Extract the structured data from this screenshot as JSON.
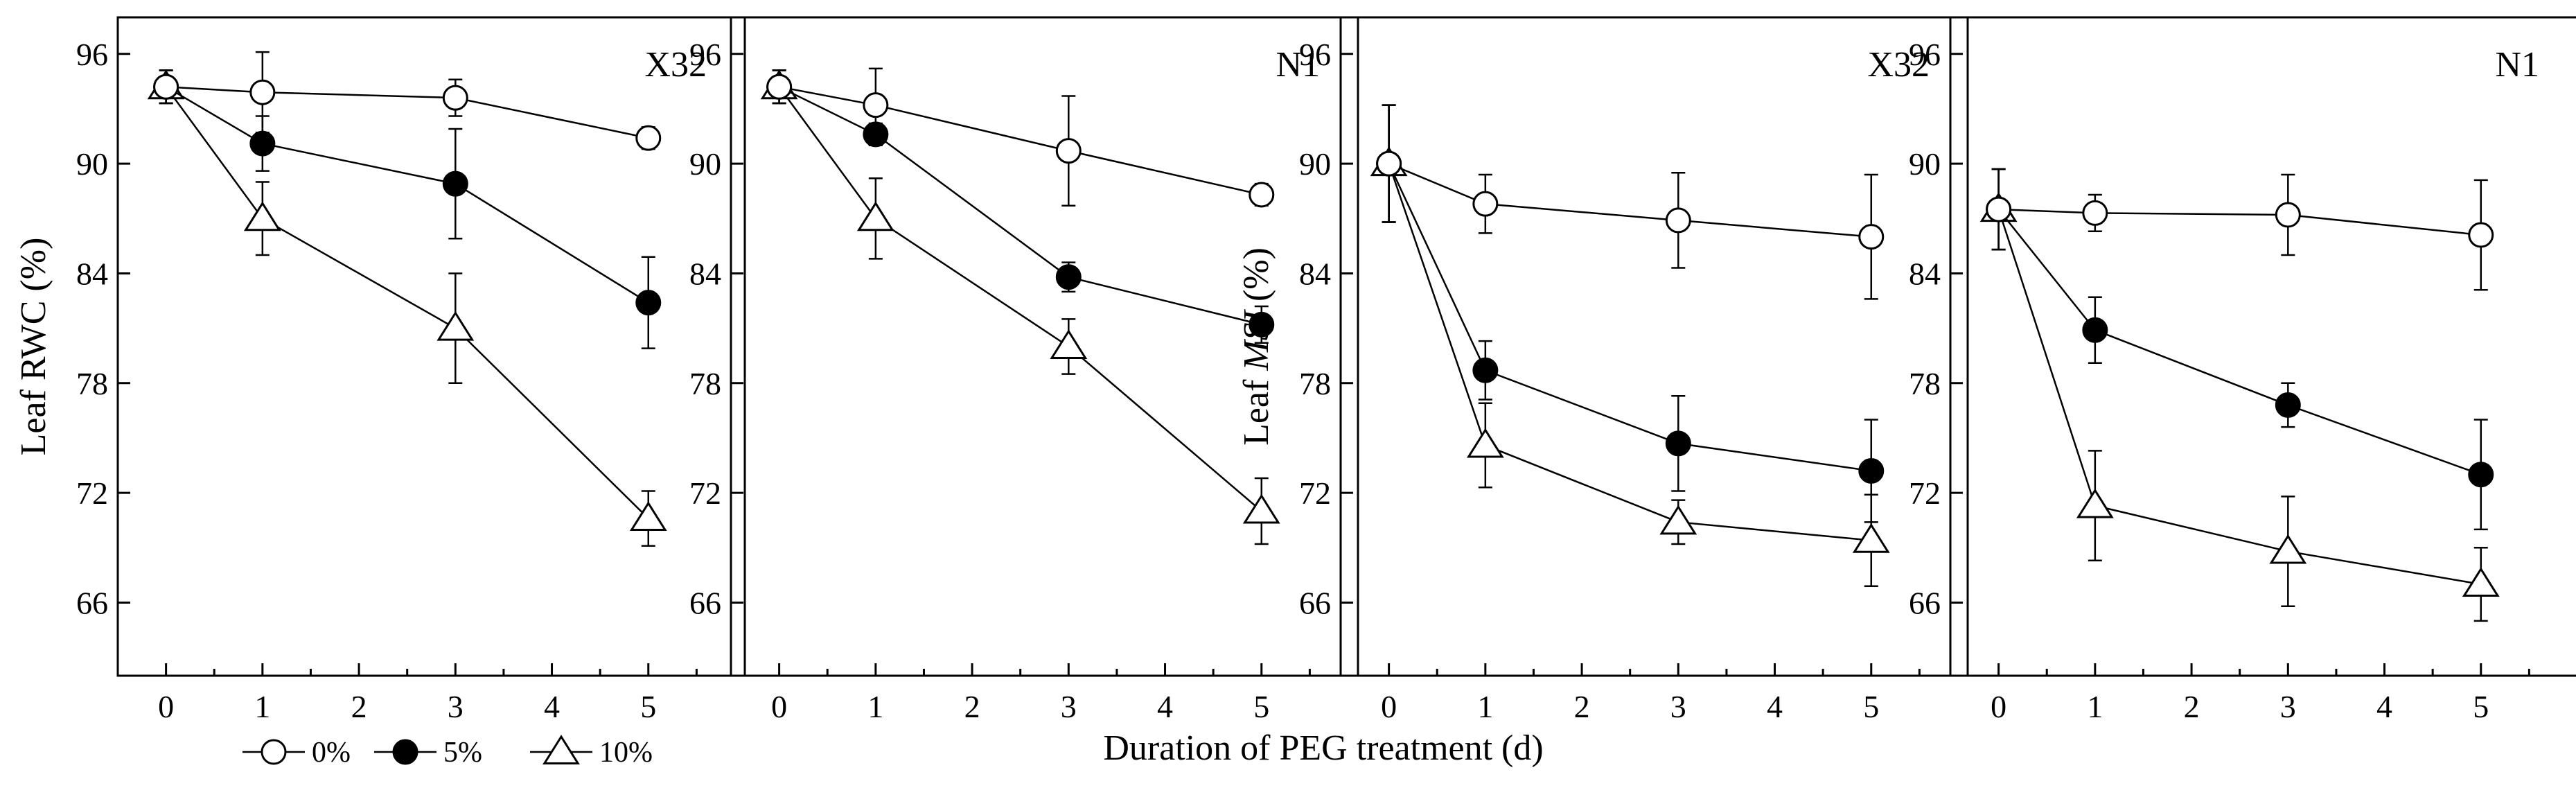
{
  "xlabel": "Duration of PEG treatment (d)",
  "legend": [
    {
      "label": "0%",
      "marker": "open-circle"
    },
    {
      "label": "5%",
      "marker": "filled-circle"
    },
    {
      "label": "10%",
      "marker": "open-triangle"
    }
  ],
  "chart_data": [
    {
      "type": "line",
      "panel_label": "X32",
      "ylabel_prefix": "Leaf ",
      "ylabel_main": "RWC",
      "ylabel_italic": false,
      "ylabel_suffix": " (%)",
      "x": [
        0,
        1,
        3,
        5
      ],
      "xlim": [
        -0.5,
        6
      ],
      "ylim": [
        62,
        98
      ],
      "xticks": [
        0,
        1,
        2,
        3,
        4,
        5
      ],
      "yticks": [
        66,
        72,
        78,
        84,
        90,
        96
      ],
      "series": [
        {
          "name": "0%",
          "marker": "open-circle",
          "values": [
            94.2,
            93.9,
            93.6,
            91.4
          ],
          "errors": [
            0.9,
            2.2,
            1.0,
            0.6
          ]
        },
        {
          "name": "5%",
          "marker": "filled-circle",
          "values": [
            94.2,
            91.1,
            88.9,
            82.4
          ],
          "errors": [
            0.9,
            1.5,
            3.0,
            2.5
          ]
        },
        {
          "name": "10%",
          "marker": "open-triangle",
          "values": [
            94.2,
            87.0,
            81.0,
            70.6
          ],
          "errors": [
            0.9,
            2.0,
            3.0,
            1.5
          ]
        }
      ]
    },
    {
      "type": "line",
      "panel_label": "N1",
      "x": [
        0,
        1,
        3,
        5
      ],
      "xlim": [
        -0.5,
        6
      ],
      "ylim": [
        62,
        98
      ],
      "xticks": [
        0,
        1,
        2,
        3,
        4,
        5
      ],
      "yticks": [
        66,
        72,
        78,
        84,
        90,
        96
      ],
      "series": [
        {
          "name": "0%",
          "marker": "open-circle",
          "values": [
            94.2,
            93.2,
            90.7,
            88.3
          ],
          "errors": [
            0.9,
            2.0,
            3.0,
            0.6
          ]
        },
        {
          "name": "5%",
          "marker": "filled-circle",
          "values": [
            94.2,
            91.6,
            83.8,
            81.2
          ],
          "errors": [
            0.9,
            0.6,
            0.8,
            1.0
          ]
        },
        {
          "name": "10%",
          "marker": "open-triangle",
          "values": [
            94.2,
            87.0,
            80.0,
            71.0
          ],
          "errors": [
            0.9,
            2.2,
            1.5,
            1.8
          ]
        }
      ]
    },
    {
      "type": "line",
      "panel_label": "X32",
      "ylabel_prefix": "Leaf ",
      "ylabel_main": "MSI",
      "ylabel_italic": true,
      "ylabel_suffix": " (%)",
      "x": [
        0,
        1,
        3,
        5
      ],
      "xlim": [
        -0.5,
        6
      ],
      "ylim": [
        62,
        98
      ],
      "xticks": [
        0,
        1,
        2,
        3,
        4,
        5
      ],
      "yticks": [
        66,
        72,
        78,
        84,
        90,
        96
      ],
      "series": [
        {
          "name": "0%",
          "marker": "open-circle",
          "values": [
            90.0,
            87.8,
            86.9,
            86.0
          ],
          "errors": [
            3.2,
            1.6,
            2.6,
            3.4
          ]
        },
        {
          "name": "5%",
          "marker": "filled-circle",
          "values": [
            90.0,
            78.7,
            74.7,
            73.2
          ],
          "errors": [
            3.2,
            1.6,
            2.6,
            2.8
          ]
        },
        {
          "name": "10%",
          "marker": "open-triangle",
          "values": [
            90.0,
            74.6,
            70.4,
            69.4
          ],
          "errors": [
            3.2,
            2.3,
            1.2,
            2.5
          ]
        }
      ]
    },
    {
      "type": "line",
      "panel_label": "N1",
      "x": [
        0,
        1,
        3,
        5
      ],
      "xlim": [
        -0.5,
        6
      ],
      "ylim": [
        62,
        98
      ],
      "xticks": [
        0,
        1,
        2,
        3,
        4,
        5
      ],
      "yticks": [
        66,
        72,
        78,
        84,
        90,
        96
      ],
      "series": [
        {
          "name": "0%",
          "marker": "open-circle",
          "values": [
            87.5,
            87.3,
            87.2,
            86.1
          ],
          "errors": [
            2.2,
            1.0,
            2.2,
            3.0
          ]
        },
        {
          "name": "5%",
          "marker": "filled-circle",
          "values": [
            87.5,
            80.9,
            76.8,
            73.0
          ],
          "errors": [
            2.2,
            1.8,
            1.2,
            3.0
          ]
        },
        {
          "name": "10%",
          "marker": "open-triangle",
          "values": [
            87.5,
            71.3,
            68.8,
            67.0
          ],
          "errors": [
            2.2,
            3.0,
            3.0,
            2.0
          ]
        }
      ]
    }
  ]
}
